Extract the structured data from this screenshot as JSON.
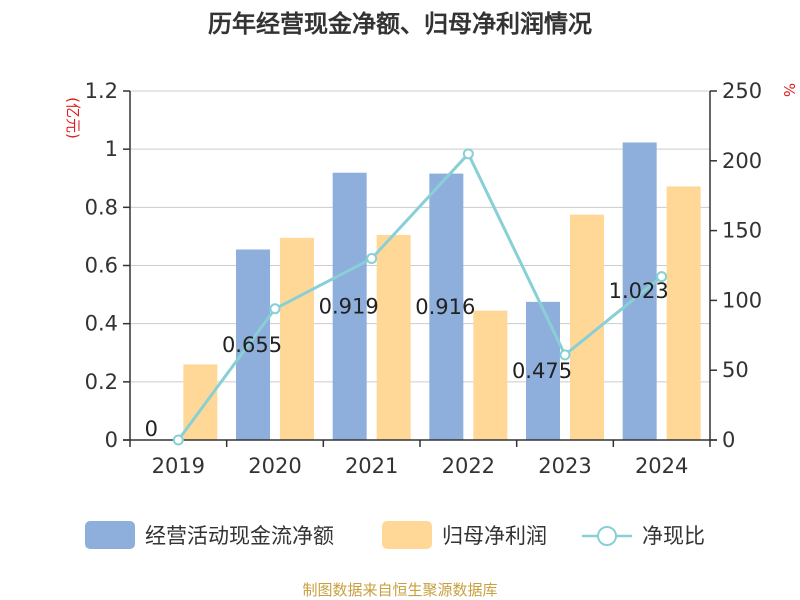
{
  "chart_data": {
    "type": "bar",
    "title": "历年经营现金净额、归母净利润情况",
    "categories": [
      "2019",
      "2020",
      "2021",
      "2022",
      "2023",
      "2024"
    ],
    "series": [
      {
        "name": "经营活动现金流净额",
        "kind": "bar",
        "axis": "left",
        "color": "#8eaedb",
        "values": [
          0,
          0.655,
          0.919,
          0.916,
          0.475,
          1.023
        ],
        "labels": [
          "0",
          "0.655",
          "0.919",
          "0.916",
          "0.475",
          "1.023"
        ]
      },
      {
        "name": "归母净利润",
        "kind": "bar",
        "axis": "left",
        "color": "#ffd898",
        "values": [
          0.26,
          0.695,
          0.705,
          0.445,
          0.775,
          0.872
        ]
      },
      {
        "name": "净现比",
        "kind": "line",
        "axis": "right",
        "color": "#88d0d6",
        "values": [
          0,
          94,
          130,
          205,
          61,
          117
        ]
      }
    ],
    "y_left": {
      "unit": "(亿元)",
      "min": 0,
      "max": 1.2,
      "ticks": [
        0,
        0.2,
        0.4,
        0.6,
        0.8,
        1,
        1.2
      ],
      "tick_labels": [
        "0",
        "0.2",
        "0.4",
        "0.6",
        "0.8",
        "1",
        "1.2"
      ]
    },
    "y_right": {
      "unit": "%",
      "min": 0,
      "max": 250,
      "ticks": [
        0,
        50,
        100,
        150,
        200,
        250
      ],
      "tick_labels": [
        "0",
        "50",
        "100",
        "150",
        "200",
        "250"
      ]
    },
    "grid": true,
    "legend": "bottom",
    "source": "制图数据来自恒生聚源数据库"
  }
}
